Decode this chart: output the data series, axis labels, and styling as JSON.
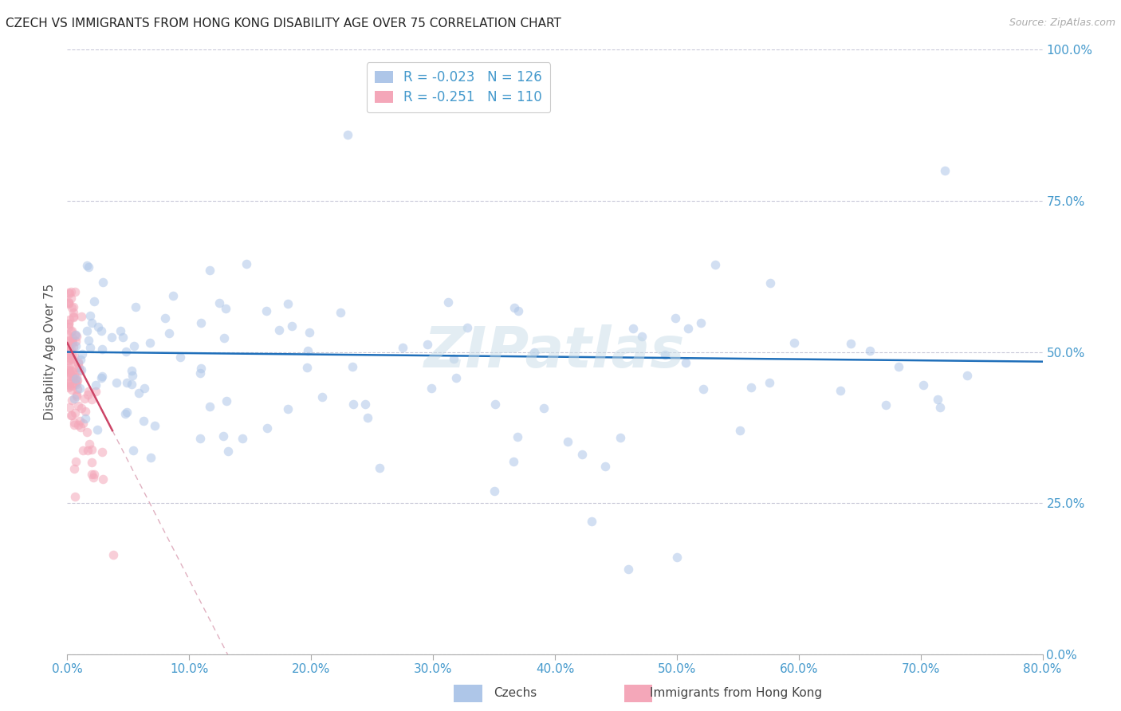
{
  "title": "CZECH VS IMMIGRANTS FROM HONG KONG DISABILITY AGE OVER 75 CORRELATION CHART",
  "source": "Source: ZipAtlas.com",
  "xlim": [
    0.0,
    0.8
  ],
  "ylim": [
    0.0,
    1.0
  ],
  "xtick_vals": [
    0.0,
    0.1,
    0.2,
    0.3,
    0.4,
    0.5,
    0.6,
    0.7,
    0.8
  ],
  "ytick_vals": [
    0.0,
    0.25,
    0.5,
    0.75,
    1.0
  ],
  "watermark": "ZIPatlas",
  "legend_items": [
    {
      "label": "Czechs",
      "color": "#aec6e8",
      "R": -0.023,
      "N": 126
    },
    {
      "label": "Immigrants from Hong Kong",
      "color": "#f4a7b9",
      "R": -0.251,
      "N": 110
    }
  ],
  "czech_dot_color": "#aec6e8",
  "hk_dot_color": "#f4a7b9",
  "trend_czech_color": "#1f6fba",
  "trend_hk_solid_color": "#cc4466",
  "trend_hk_dash_color": "#e0b0c0",
  "background_color": "#ffffff",
  "grid_color": "#c8c8d8",
  "axis_color": "#4499cc",
  "ylabel_color": "#555555",
  "dot_size": 70,
  "dot_alpha": 0.55,
  "title_fontsize": 11,
  "source_fontsize": 9,
  "tick_fontsize": 11,
  "ylabel_fontsize": 11,
  "legend_fontsize": 12,
  "watermark_fontsize": 52,
  "watermark_color": "#c8dce8",
  "watermark_alpha": 0.5
}
